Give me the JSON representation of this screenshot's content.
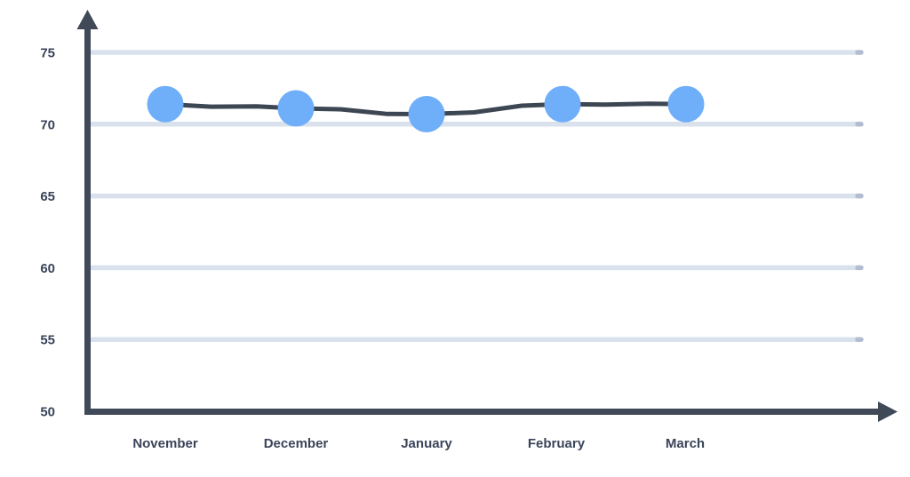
{
  "chart_data": {
    "type": "line",
    "title": "",
    "xlabel": "",
    "ylabel": "",
    "categories": [
      "November",
      "December",
      "January",
      "February",
      "March"
    ],
    "values": [
      71.4,
      71.1,
      70.7,
      71.4,
      71.4
    ],
    "y_ticks": [
      50,
      55,
      60,
      65,
      70,
      75
    ],
    "ylim": [
      50,
      77
    ],
    "grid": true,
    "legend": false,
    "style": {
      "marker_color": "#6FAEF8",
      "line_color": "#3D4653",
      "grid_color": "#D9E2EC",
      "grid_cap_color": "#B3BDD2",
      "axis_color": "#3F4958",
      "label_color": "#3A4459",
      "background": "#FFFFFF"
    }
  }
}
